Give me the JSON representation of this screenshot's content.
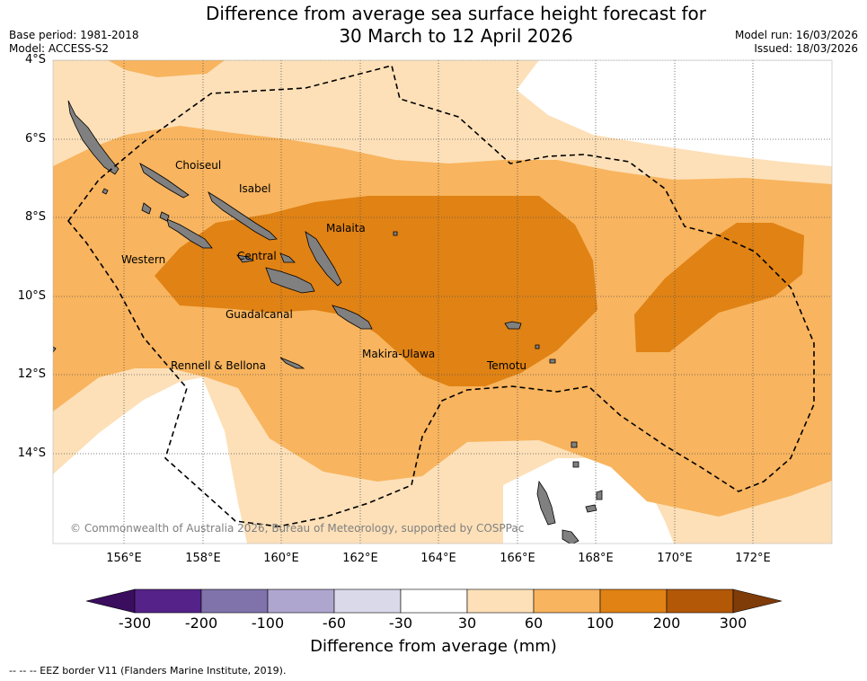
{
  "title": {
    "line1": "Difference from average sea surface height forecast for",
    "line2": "30 March to 12 April 2026"
  },
  "meta": {
    "base_period": "Base period: 1981-2018",
    "model": "Model: ACCESS-S2",
    "model_run": "Model run: 16/03/2026",
    "issued": "Issued: 18/03/2026"
  },
  "map": {
    "lat_labels": [
      "4°S",
      "6°S",
      "8°S",
      "10°S",
      "12°S",
      "14°S"
    ],
    "lon_labels": [
      "156°E",
      "158°E",
      "160°E",
      "162°E",
      "164°E",
      "166°E",
      "168°E",
      "170°E",
      "172°E"
    ],
    "regions": [
      "Choiseul",
      "Isabel",
      "Malaita",
      "Western",
      "Central",
      "Guadalcanal",
      "Makira-Ulawa",
      "Temotu",
      "Rennell & Bellona"
    ],
    "copyright": "© Commonwealth of Australia 2026, Bureau of Meteorology, supported by COSPPac",
    "land_color": "#808080"
  },
  "colorbar": {
    "ticks": [
      "-300",
      "-200",
      "-100",
      "-60",
      "-30",
      "30",
      "60",
      "100",
      "200",
      "300"
    ],
    "colors": [
      "#3a0d5e",
      "#542288",
      "#8072ab",
      "#afa6cf",
      "#d9d9ea",
      "#ffffff",
      "#fde0b8",
      "#f8b45e",
      "#e08214",
      "#b35806",
      "#7f3b08"
    ],
    "label": "Difference from average (mm)"
  },
  "footnote": "--  --  -- EEZ border V11 (Flanders Marine Institute, 2019)."
}
